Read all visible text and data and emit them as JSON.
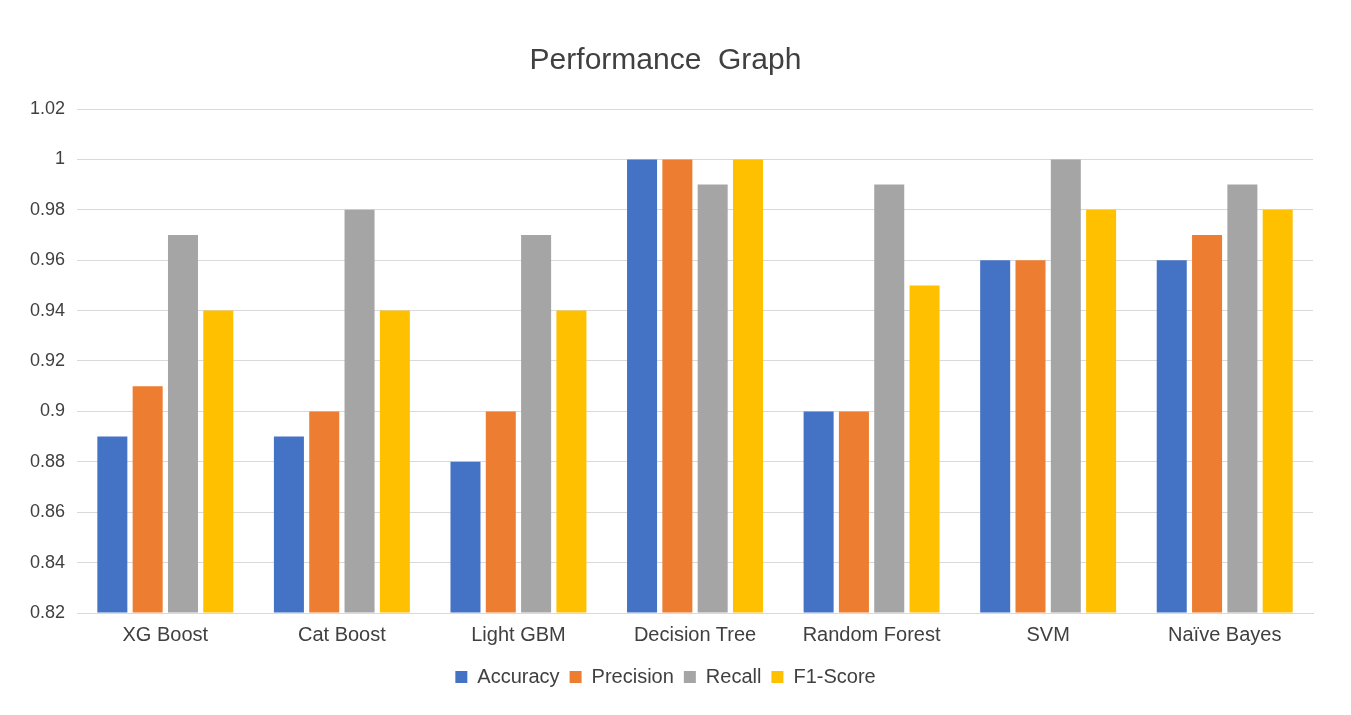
{
  "chart_data": {
    "type": "bar",
    "title": "Performance  Graph",
    "categories": [
      "XG Boost",
      "Cat Boost",
      "Light GBM",
      "Decision Tree",
      "Random Forest",
      "SVM",
      "Naïve Bayes"
    ],
    "series": [
      {
        "name": "Accuracy",
        "color": "#4472c4",
        "values": [
          0.89,
          0.89,
          0.88,
          1,
          0.9,
          0.96,
          0.96
        ]
      },
      {
        "name": "Precision",
        "color": "#ed7d31",
        "values": [
          0.91,
          0.9,
          0.9,
          1,
          0.9,
          0.96,
          0.97
        ]
      },
      {
        "name": "Recall",
        "color": "#a5a5a5",
        "values": [
          0.97,
          0.98,
          0.97,
          0.99,
          0.99,
          1,
          0.99
        ]
      },
      {
        "name": "F1-Score",
        "color": "#ffc000",
        "values": [
          0.94,
          0.94,
          0.94,
          1,
          0.95,
          0.98,
          0.98
        ]
      }
    ],
    "ylim": [
      0.82,
      1.02
    ],
    "yticks": [
      0.82,
      0.84,
      0.86,
      0.88,
      0.9,
      0.92,
      0.94,
      0.96,
      0.98,
      1,
      1.02
    ],
    "grid": "y",
    "legend": "bottom"
  }
}
